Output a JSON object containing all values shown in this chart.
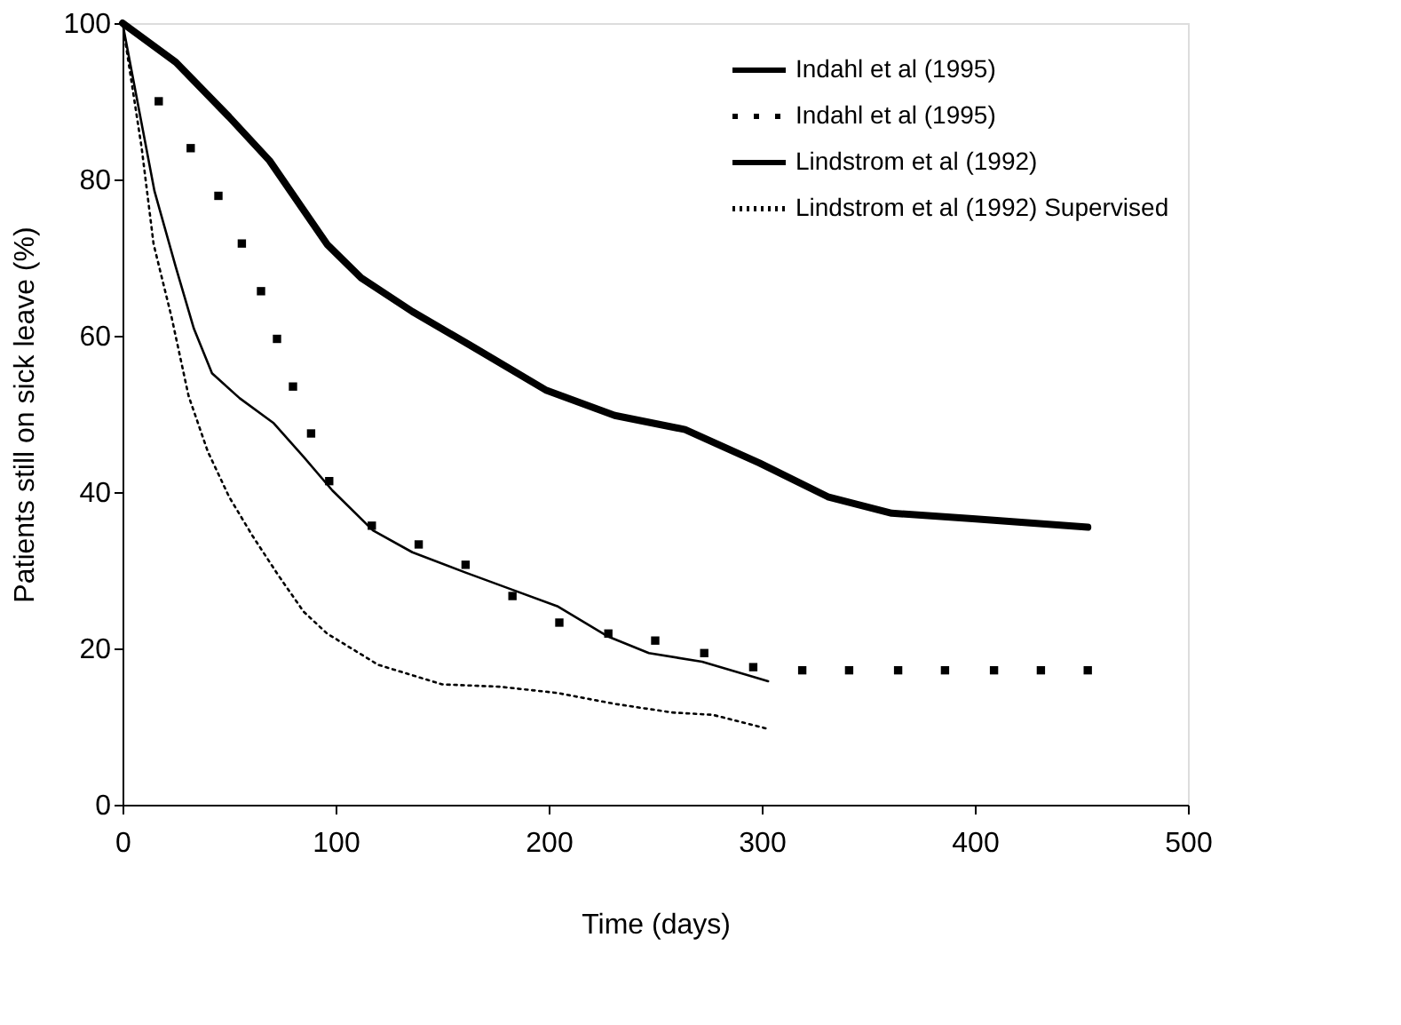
{
  "chart_data": {
    "type": "line",
    "xlabel": "Time (days)",
    "ylabel": "Patients still on sick leave (%)",
    "xlim": [
      0,
      500
    ],
    "xticks": [
      0,
      100,
      200,
      300,
      400,
      500
    ],
    "ylim": [
      0,
      100
    ],
    "yticks": [
      0,
      20,
      40,
      60,
      80,
      100
    ],
    "grid": false,
    "legend": "top right",
    "series": [
      {
        "name": "Indahl et al (1995)",
        "color": "#000000",
        "line_style": "solid",
        "x": [
          0,
          25,
          50,
          69,
          96,
          112,
          136,
          163,
          199,
          231,
          264,
          299,
          331,
          361,
          399,
          453
        ],
        "values": [
          100,
          95,
          88,
          82.4,
          71.7,
          67.4,
          63.1,
          58.8,
          53.0,
          49.8,
          48.0,
          43.7,
          39.4,
          37.3,
          36.6,
          35.5
        ]
      },
      {
        "name": "Indahl et al (1995)",
        "color": "#000000",
        "type": "scatter",
        "marker": "square",
        "x": [
          17,
          32,
          45,
          56,
          65,
          72.5,
          80,
          88.5,
          97,
          117,
          139,
          161,
          183,
          205,
          228,
          250,
          273,
          296,
          319,
          341,
          364,
          386,
          409,
          431,
          453
        ],
        "values": [
          90,
          84,
          77.9,
          71.8,
          65.7,
          59.6,
          53.5,
          47.5,
          41.4,
          35.7,
          33.3,
          30.7,
          26.7,
          23.3,
          21.9,
          21.0,
          19.4,
          17.6,
          17.2,
          17.2,
          17.2,
          17.2,
          17.2,
          17.2,
          17.2
        ]
      },
      {
        "name": "Lindstrom et al (1992)",
        "color": "#000000",
        "line_style": "solid",
        "x": [
          0,
          15,
          25,
          33.5,
          42,
          55,
          71,
          85,
          98.5,
          117.5,
          136,
          161,
          182,
          204,
          228,
          247,
          272,
          303
        ],
        "values": [
          100,
          78.5,
          68.8,
          60.9,
          55.2,
          52.0,
          48.8,
          44.5,
          40.2,
          35.1,
          32.3,
          29.7,
          27.6,
          25.4,
          21.5,
          19.4,
          18.3,
          15.8
        ]
      },
      {
        "name": "Lindstrom et al (1992) Supervised",
        "color": "#000000",
        "line_style": "dotted",
        "x": [
          0,
          9,
          14.6,
          23,
          31,
          40,
          50,
          61,
          73,
          85,
          96,
          120,
          150,
          177,
          204,
          231,
          258,
          277,
          303
        ],
        "values": [
          100,
          84,
          71.7,
          62.4,
          52.3,
          45.2,
          39.4,
          34.4,
          29.4,
          24.7,
          21.9,
          17.9,
          15.4,
          15.1,
          14.3,
          12.9,
          11.8,
          11.5,
          9.7
        ]
      }
    ]
  }
}
